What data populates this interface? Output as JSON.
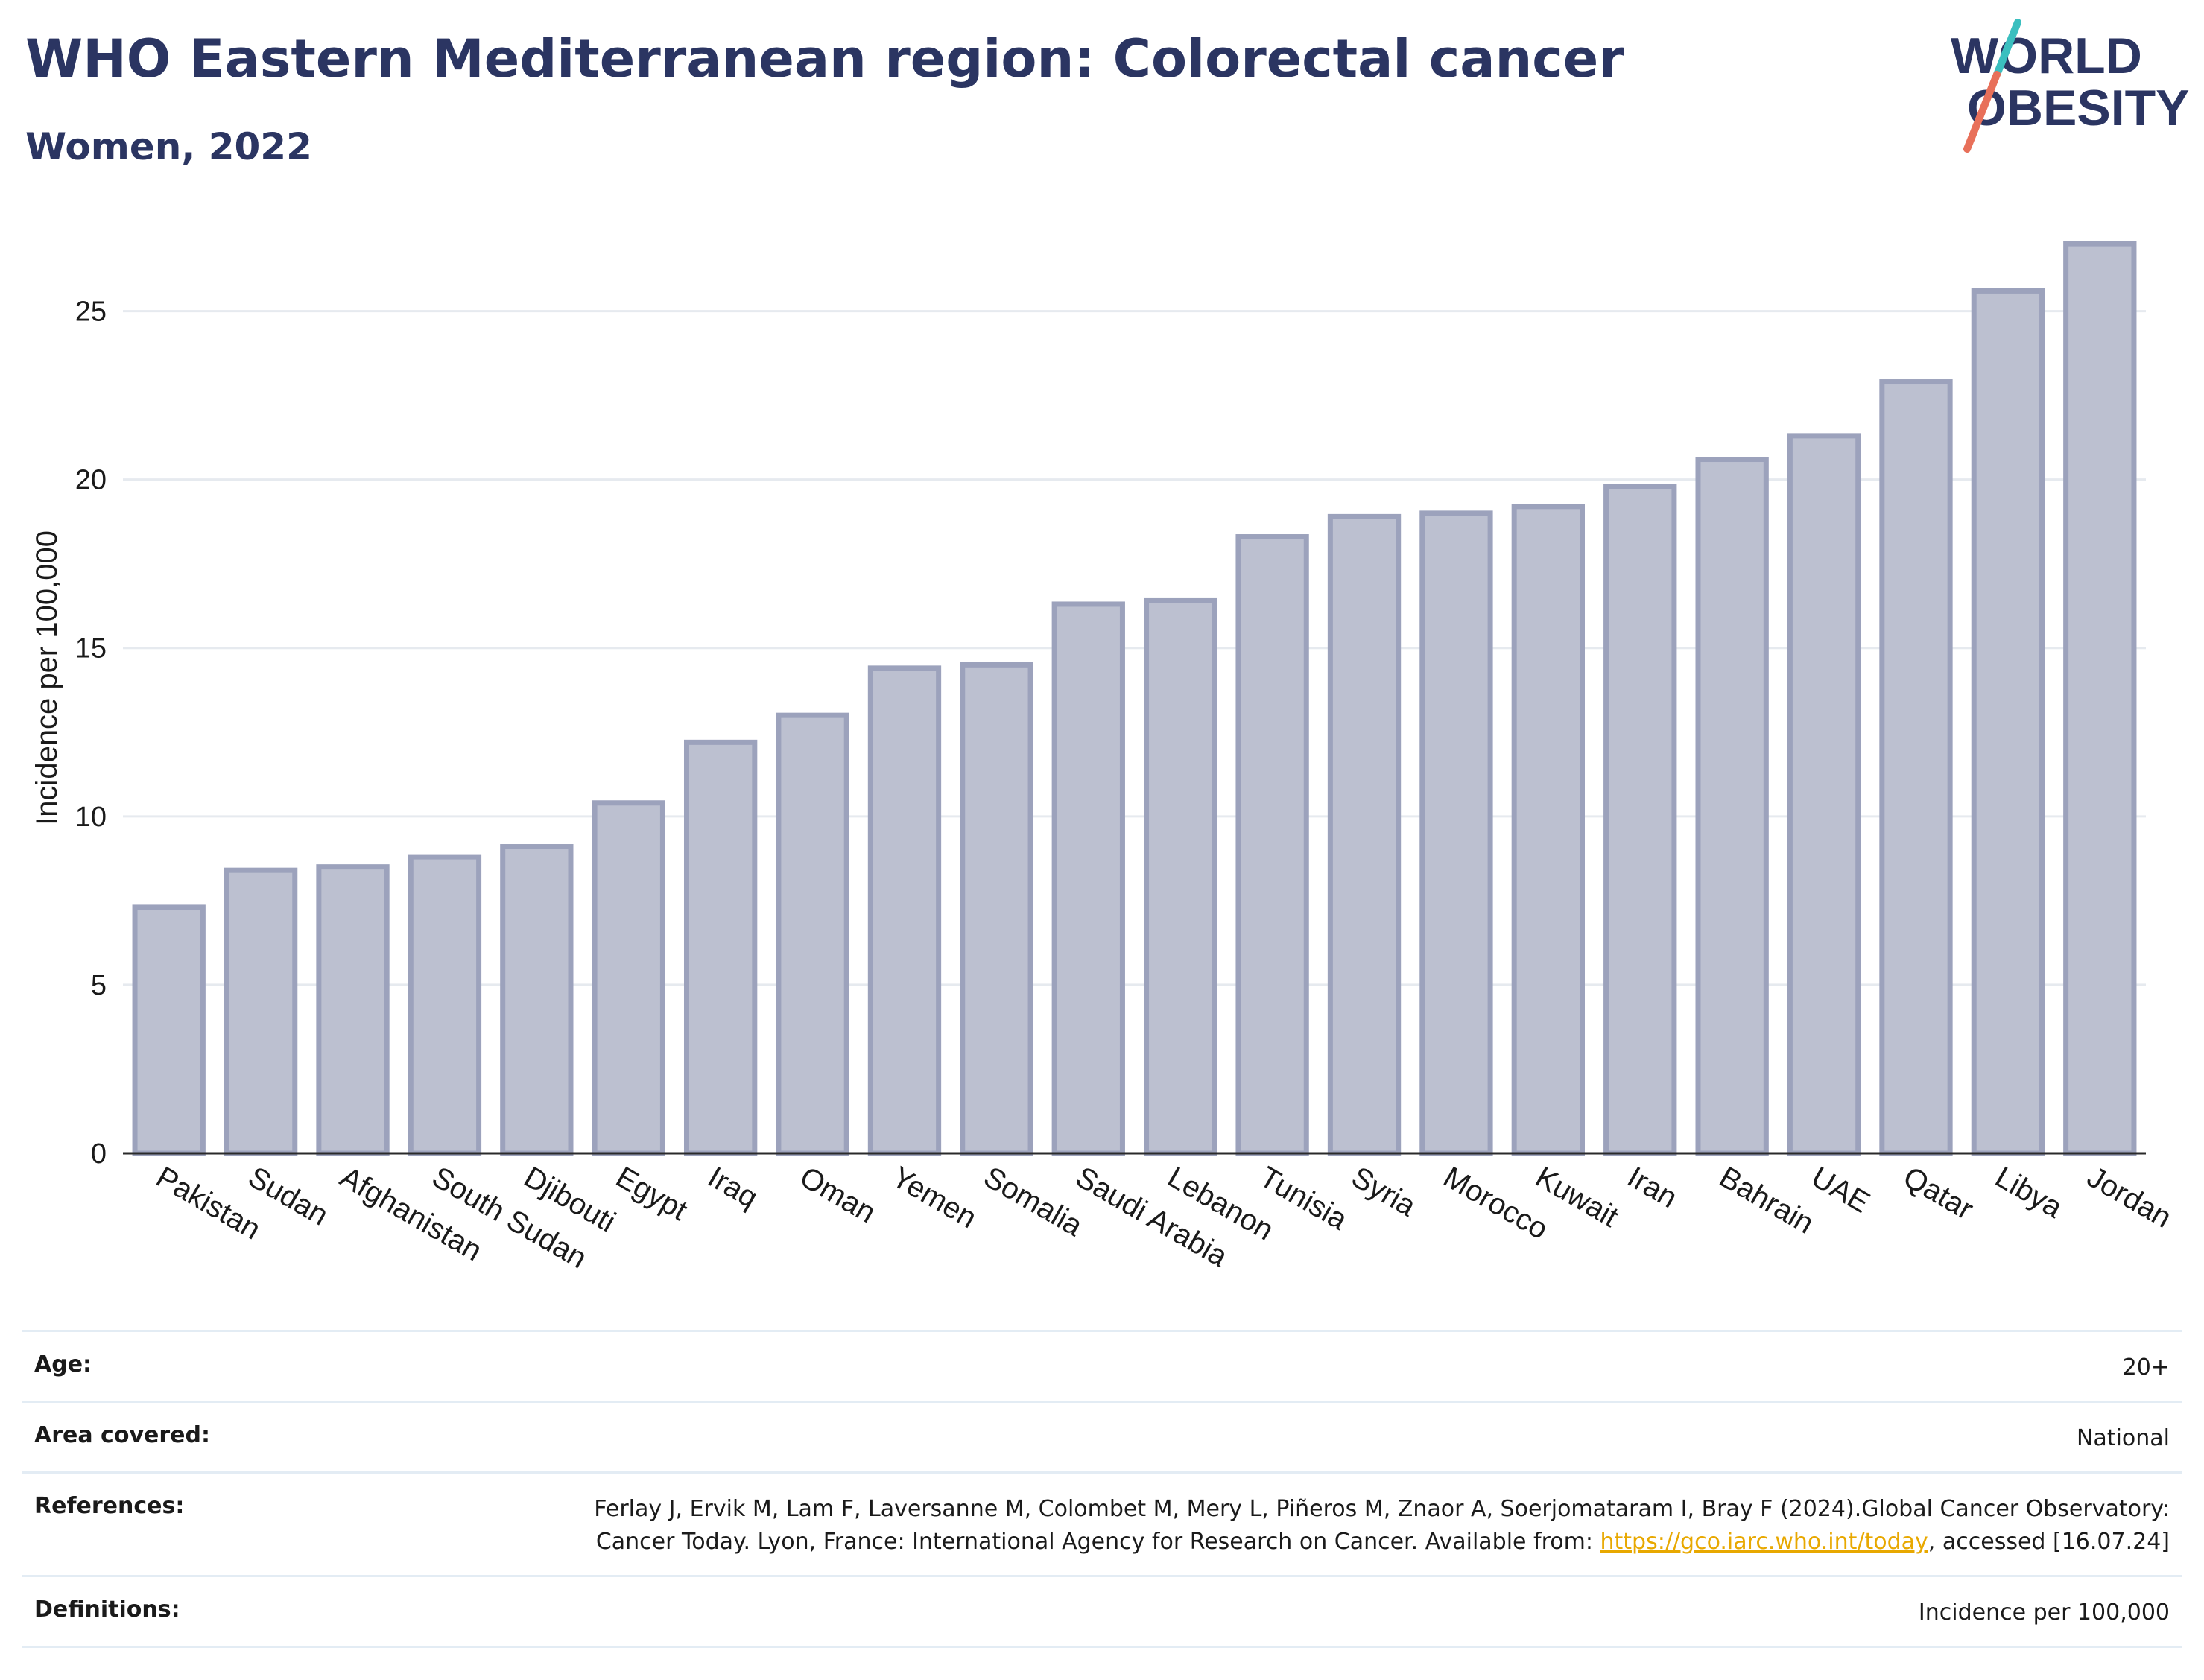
{
  "title": "WHO Eastern Mediterranean region: Colorectal cancer",
  "subtitle": "Women, 2022",
  "logo": {
    "line1": "WORLD",
    "line2": "OBESITY"
  },
  "colors": {
    "title": "#2b3562",
    "bar_fill": "#bcc0d0",
    "bar_stroke": "#9ca2bc",
    "grid": "#e6eaef",
    "link": "#e8a800",
    "logo_teal": "#3bbfbf",
    "logo_coral": "#e8705a"
  },
  "chart_data": {
    "type": "bar",
    "ylabel": "Incidence per 100,000",
    "xlabel": "",
    "ylim": [
      0,
      27.6
    ],
    "yticks": [
      0,
      5,
      10,
      15,
      20,
      25
    ],
    "grid": true,
    "categories": [
      "Pakistan",
      "Sudan",
      "Afghanistan",
      "South Sudan",
      "Djibouti",
      "Egypt",
      "Iraq",
      "Oman",
      "Yemen",
      "Somalia",
      "Saudi Arabia",
      "Lebanon",
      "Tunisia",
      "Syria",
      "Morocco",
      "Kuwait",
      "Iran",
      "Bahrain",
      "UAE",
      "Qatar",
      "Libya",
      "Jordan"
    ],
    "values": [
      7.3,
      8.4,
      8.5,
      8.8,
      9.1,
      10.4,
      12.2,
      13.0,
      14.4,
      14.5,
      16.3,
      16.4,
      18.3,
      18.9,
      19.0,
      19.2,
      19.8,
      20.6,
      21.3,
      22.9,
      25.6,
      27.0
    ]
  },
  "meta": {
    "age_label": "Age:",
    "age_value": "20+",
    "area_label": "Area covered:",
    "area_value": "National",
    "references_label": "References:",
    "references_text": "Ferlay J, Ervik M, Lam F, Laversanne M, Colombet M, Mery L, Piñeros M, Znaor A, Soerjomataram I, Bray F (2024).Global Cancer Observatory: Cancer Today. Lyon, France: International Agency for Research on Cancer. Available from: ",
    "references_link": "https://gco.iarc.who.int/today",
    "references_suffix": ", accessed [16.07.24]",
    "definitions_label": "Definitions:",
    "definitions_value": "Incidence per 100,000"
  }
}
